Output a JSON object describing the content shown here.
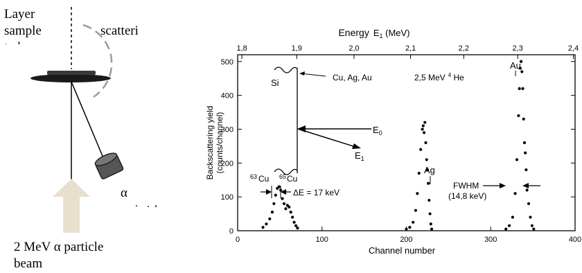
{
  "setup": {
    "sample_label_lines": [
      "Layer",
      "sample",
      "to be"
    ],
    "scatter_label": "scatteri",
    "alpha_label": "α",
    "beam_label_lines": [
      "2 MeV α particle",
      "beam"
    ],
    "beam_arrow_color": "#e8e0cd",
    "detector_color": "#555555"
  },
  "spectrum": {
    "top_axis_title": "Energy",
    "top_axis_symbol": "E",
    "top_axis_subscript": "1",
    "top_axis_unit": " (MeV)",
    "ylabel_line1": "Backscattering yield",
    "ylabel_line2": "(counts/channel)",
    "xlabel": "Channel number",
    "beam_label": "2,5 MeV",
    "beam_label_sup": "4",
    "beam_label_end": " He",
    "inset_si": "Si",
    "inset_metals": "Cu, Ag, Au",
    "inset_e0": "E",
    "inset_e0_sub": "0",
    "inset_e1": "E",
    "inset_e1_sub": "1",
    "cu63_sup": "63",
    "cu63": "Cu",
    "cu65_sup": "65",
    "cu65": "Cu",
    "delta_e": "ΔE = 17 keV",
    "ag": "Ag",
    "au": "Au",
    "fwhm": "FWHM",
    "fwhm_value": "(14,8 keV)"
  },
  "chart_data": {
    "type": "scatter",
    "xlabel": "Channel number",
    "ylabel": "Backscattering yield (counts/channel)",
    "xlim": [
      0,
      400
    ],
    "ylim": [
      0,
      520
    ],
    "x_ticks": [
      "0",
      "100",
      "200",
      "300",
      "400"
    ],
    "y_ticks": [
      "0",
      "100",
      "200",
      "300",
      "400",
      "500"
    ],
    "top_axis": {
      "label": "Energy E1 (MeV)",
      "ticks": [
        "1,8",
        "1,9",
        "2,0",
        "2,1",
        "2,2",
        "2,3",
        "2,4"
      ],
      "tick_channels": [
        5,
        70,
        138,
        205,
        268,
        332,
        398
      ]
    },
    "series": [
      {
        "name": "Cu",
        "x": [
          30,
          34,
          38,
          41,
          43,
          45,
          47,
          49,
          51,
          53,
          55,
          57,
          59,
          61,
          63,
          65,
          67,
          69,
          71
        ],
        "y": [
          10,
          20,
          35,
          55,
          80,
          105,
          125,
          130,
          120,
          95,
          80,
          65,
          75,
          70,
          55,
          40,
          25,
          15,
          8
        ]
      },
      {
        "name": "Ag",
        "x": [
          200,
          204,
          208,
          211,
          213,
          215,
          217,
          219,
          220,
          221,
          222,
          223,
          224,
          225,
          226,
          227,
          228,
          229,
          230
        ],
        "y": [
          5,
          10,
          25,
          60,
          110,
          170,
          240,
          300,
          310,
          290,
          320,
          260,
          210,
          180,
          140,
          90,
          50,
          20,
          5
        ]
      },
      {
        "name": "Au",
        "x": [
          318,
          322,
          326,
          329,
          331,
          333,
          334,
          335,
          336,
          337,
          338,
          339,
          340,
          341,
          342,
          343,
          345,
          347,
          349,
          351
        ],
        "y": [
          5,
          15,
          40,
          110,
          210,
          340,
          420,
          480,
          500,
          470,
          420,
          330,
          260,
          230,
          180,
          120,
          80,
          40,
          15,
          5
        ]
      }
    ]
  }
}
